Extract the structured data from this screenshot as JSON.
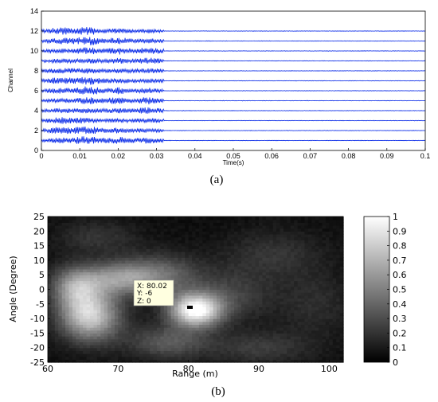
{
  "chart_data": [
    {
      "type": "line",
      "panel_label": "(a)",
      "xlabel": "Time(s)",
      "ylabel": "Channel",
      "xlim": [
        0,
        0.1
      ],
      "ylim": [
        0,
        14
      ],
      "xticks": [
        0,
        0.01,
        0.02,
        0.03,
        0.04,
        0.05,
        0.06,
        0.07,
        0.08,
        0.09,
        0.1
      ],
      "yticks": [
        0,
        2,
        4,
        6,
        8,
        10,
        12,
        14
      ],
      "xtick_labels": [
        "0",
        "0.01",
        "0.02",
        "0.03",
        "0.04",
        "0.05",
        "0.06",
        "0.07",
        "0.08",
        "0.09",
        "0.1"
      ],
      "ytick_labels": [
        "0",
        "2",
        "4",
        "6",
        "8",
        "10",
        "12",
        "14"
      ],
      "channels": [
        1,
        2,
        3,
        4,
        5,
        6,
        7,
        8,
        9,
        10,
        11,
        12
      ],
      "trace_color": "#0a2be8",
      "signal_peak_times": [
        0.005,
        0.012,
        0.02,
        0.028
      ],
      "signal_end_time": 0.032,
      "grid": false
    },
    {
      "type": "heatmap",
      "panel_label": "(b)",
      "xlabel": "Range (m)",
      "ylabel": "Angle (Degree)",
      "xlim": [
        60,
        102
      ],
      "ylim": [
        -25,
        25
      ],
      "xticks": [
        60,
        70,
        80,
        90,
        100
      ],
      "yticks": [
        -25,
        -20,
        -15,
        -10,
        -5,
        0,
        5,
        10,
        15,
        20,
        25
      ],
      "xtick_labels": [
        "60",
        "70",
        "80",
        "90",
        "100"
      ],
      "ytick_labels": [
        "-25",
        "-20",
        "-15",
        "-10",
        "-5",
        "0",
        "5",
        "10",
        "15",
        "20",
        "25"
      ],
      "colormap": "gray",
      "clim": [
        0,
        1
      ],
      "colorbar_ticks": [
        0,
        0.1,
        0.2,
        0.3,
        0.4,
        0.5,
        0.6,
        0.7,
        0.8,
        0.9,
        1
      ],
      "colorbar_tick_labels": [
        "0",
        "0.1",
        "0.2",
        "0.3",
        "0.4",
        "0.5",
        "0.6",
        "0.7",
        "0.8",
        "0.9",
        "1"
      ],
      "peak": {
        "x": 80.02,
        "y": -6,
        "z": 0
      },
      "blobs": [
        {
          "x": 81,
          "y": -7,
          "amp": 0.95,
          "sx": 2.6,
          "sy": 4
        },
        {
          "x": 66,
          "y": -9,
          "amp": 0.75,
          "sx": 3,
          "sy": 6
        },
        {
          "x": 64,
          "y": 1,
          "amp": 0.5,
          "sx": 2.5,
          "sy": 5
        },
        {
          "x": 70,
          "y": 4,
          "amp": 0.45,
          "sx": 3.5,
          "sy": 4
        },
        {
          "x": 76,
          "y": 5,
          "amp": 0.35,
          "sx": 4,
          "sy": 5
        },
        {
          "x": 77,
          "y": -18,
          "amp": 0.3,
          "sx": 4,
          "sy": 4
        },
        {
          "x": 90,
          "y": -20,
          "amp": 0.18,
          "sx": 5,
          "sy": 4
        },
        {
          "x": 92,
          "y": 12,
          "amp": 0.15,
          "sx": 5,
          "sy": 6
        },
        {
          "x": 86,
          "y": -2,
          "amp": 0.2,
          "sx": 4,
          "sy": 6
        },
        {
          "x": 98,
          "y": -5,
          "amp": 0.12,
          "sx": 4,
          "sy": 8
        },
        {
          "x": 67,
          "y": 18,
          "amp": 0.15,
          "sx": 4,
          "sy": 4
        }
      ]
    }
  ],
  "datatip": {
    "x_label": "X: 80.02",
    "y_label": "Y: -6",
    "z_label": "Z: 0"
  }
}
